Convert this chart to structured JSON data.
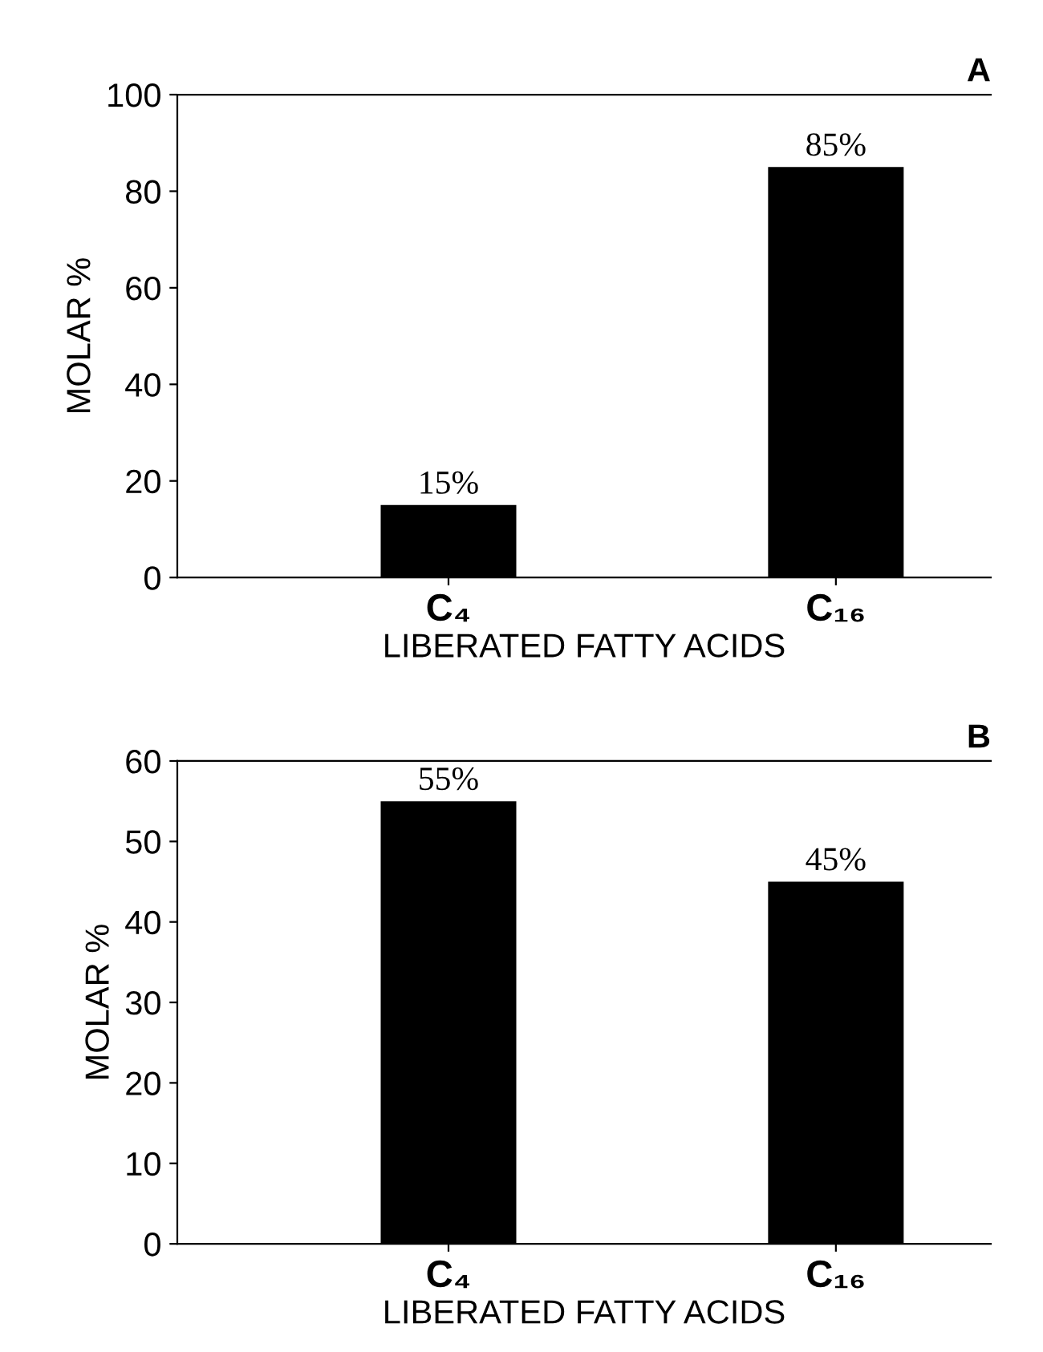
{
  "chart_data": [
    {
      "type": "bar",
      "title": "A",
      "xlabel": "LIBERATED FATTY ACIDS",
      "ylabel": "MOLAR %",
      "categories": [
        "C₄",
        "C₁₆"
      ],
      "values": [
        15,
        85
      ],
      "value_labels": [
        "15%",
        "85%"
      ],
      "color": "#000000",
      "ylim": [
        0,
        100
      ],
      "yticks": [
        0,
        20,
        40,
        60,
        80,
        100
      ],
      "grid": false,
      "legend": false
    },
    {
      "type": "bar",
      "title": "B",
      "xlabel": "LIBERATED FATTY ACIDS",
      "ylabel": "MOLAR %",
      "categories": [
        "C₄",
        "C₁₆"
      ],
      "values": [
        55,
        45
      ],
      "value_labels": [
        "55%",
        "45%"
      ],
      "color": "#000000",
      "ylim": [
        0,
        60
      ],
      "yticks": [
        0,
        10,
        20,
        30,
        40,
        50,
        60
      ],
      "grid": false,
      "legend": false
    }
  ]
}
